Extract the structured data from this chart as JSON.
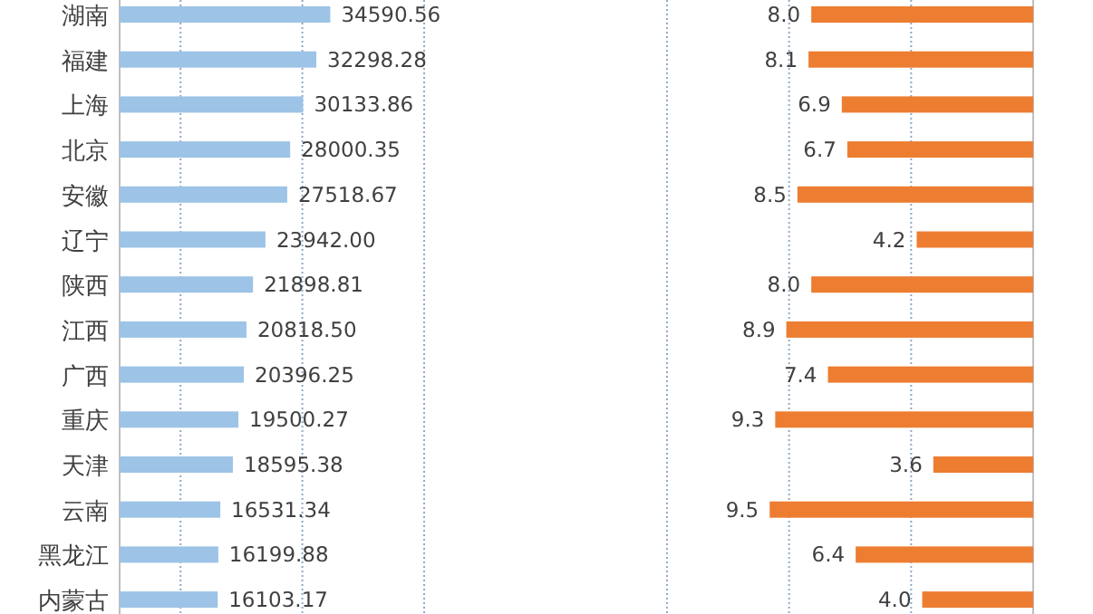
{
  "chart_data": [
    {
      "type": "bar",
      "orientation": "horizontal",
      "categories": [
        "湖南",
        "福建",
        "上海",
        "北京",
        "安徽",
        "辽宁",
        "陕西",
        "江西",
        "广西",
        "重庆",
        "天津",
        "云南",
        "黑龙江",
        "内蒙古"
      ],
      "values": [
        34590.56,
        32298.28,
        30133.86,
        28000.35,
        27518.67,
        23942.0,
        21898.81,
        20818.5,
        20396.25,
        19500.27,
        18595.38,
        16531.34,
        16199.88,
        16103.17
      ],
      "value_labels": [
        "34590.56",
        "32298.28",
        "30133.86",
        "28000.35",
        "27518.67",
        "23942.00",
        "21898.81",
        "20818.50",
        "20396.25",
        "19500.27",
        "18595.38",
        "16531.34",
        "16199.88",
        "16103.17"
      ],
      "color": "#9dc3e6",
      "ref_lines": [
        {
          "axis": "x",
          "value": 10000,
          "color": "#8fa9c8",
          "line_style": "dotted"
        },
        {
          "axis": "x",
          "value": 30000,
          "color": "#8fa9c8",
          "line_style": "dotted"
        },
        {
          "axis": "x",
          "value": 50000,
          "color": "#8fa9c8",
          "line_style": "dotted"
        }
      ]
    },
    {
      "type": "bar",
      "orientation": "horizontal",
      "values": [
        8.0,
        8.1,
        6.9,
        6.7,
        8.5,
        4.2,
        8.0,
        8.9,
        7.4,
        9.3,
        3.6,
        9.5,
        6.4,
        4.0
      ],
      "value_labels": [
        "8.0",
        "8.1",
        "6.9",
        "6.7",
        "8.5",
        "4.2",
        "8.0",
        "8.9",
        "7.4",
        "9.3",
        "3.6",
        "9.5",
        "6.4",
        "4.0"
      ],
      "color": "#ed7d31",
      "ref_lines": [
        {
          "axis": "x",
          "value": 4.4,
          "color": "#8fa9c8",
          "line_style": "dotted"
        },
        {
          "axis": "x",
          "value": 8.8,
          "color": "#8fa9c8",
          "line_style": "dotted"
        },
        {
          "axis": "x",
          "value": 13.2,
          "color": "#8fa9c8",
          "line_style": "dotted"
        }
      ]
    }
  ]
}
